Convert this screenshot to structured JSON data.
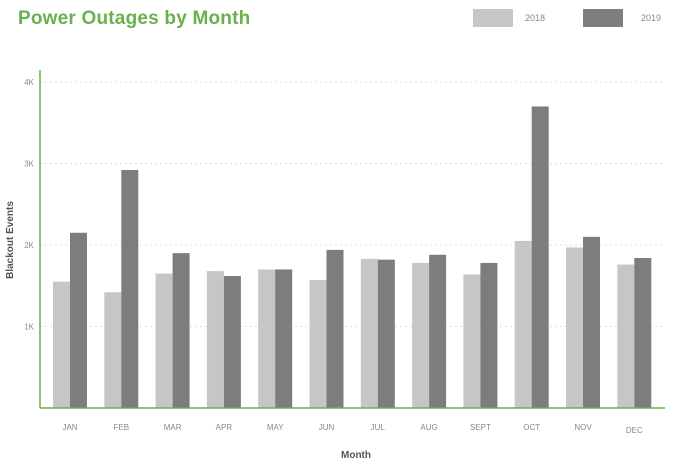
{
  "title": "Power Outages by Month",
  "colors": {
    "title": "#6ab04c",
    "axis": "#6ab04c",
    "grid": "#dddddd",
    "series_2018": "#c6c6c6",
    "series_2019": "#7d7d7d",
    "tick_text": "#888888",
    "label_text": "#555555"
  },
  "chart_data": {
    "type": "bar",
    "categories": [
      "JAN",
      "FEB",
      "MAR",
      "APR",
      "MAY",
      "JUN",
      "JUL",
      "AUG",
      "SEPT",
      "OCT",
      "NOV",
      "DEC"
    ],
    "series": [
      {
        "name": "2018",
        "values": [
          15.5,
          14.2,
          16.5,
          16.8,
          17.0,
          15.7,
          18.3,
          17.8,
          16.4,
          20.5,
          19.7,
          17.6
        ]
      },
      {
        "name": "2019",
        "values": [
          21.5,
          29.2,
          19.0,
          16.2,
          17.0,
          19.4,
          18.2,
          18.8,
          17.8,
          37.0,
          21.0,
          18.4
        ]
      }
    ],
    "title": "Power Outages by Month",
    "xlabel": "Month",
    "ylabel": "Blackout Events",
    "ylim": [
      0,
      40
    ],
    "yticks": [
      10,
      20,
      30,
      40
    ],
    "ytick_labels": [
      "1K",
      "2K",
      "3K",
      "4K"
    ],
    "grid": true,
    "legend_position": "top-right"
  }
}
